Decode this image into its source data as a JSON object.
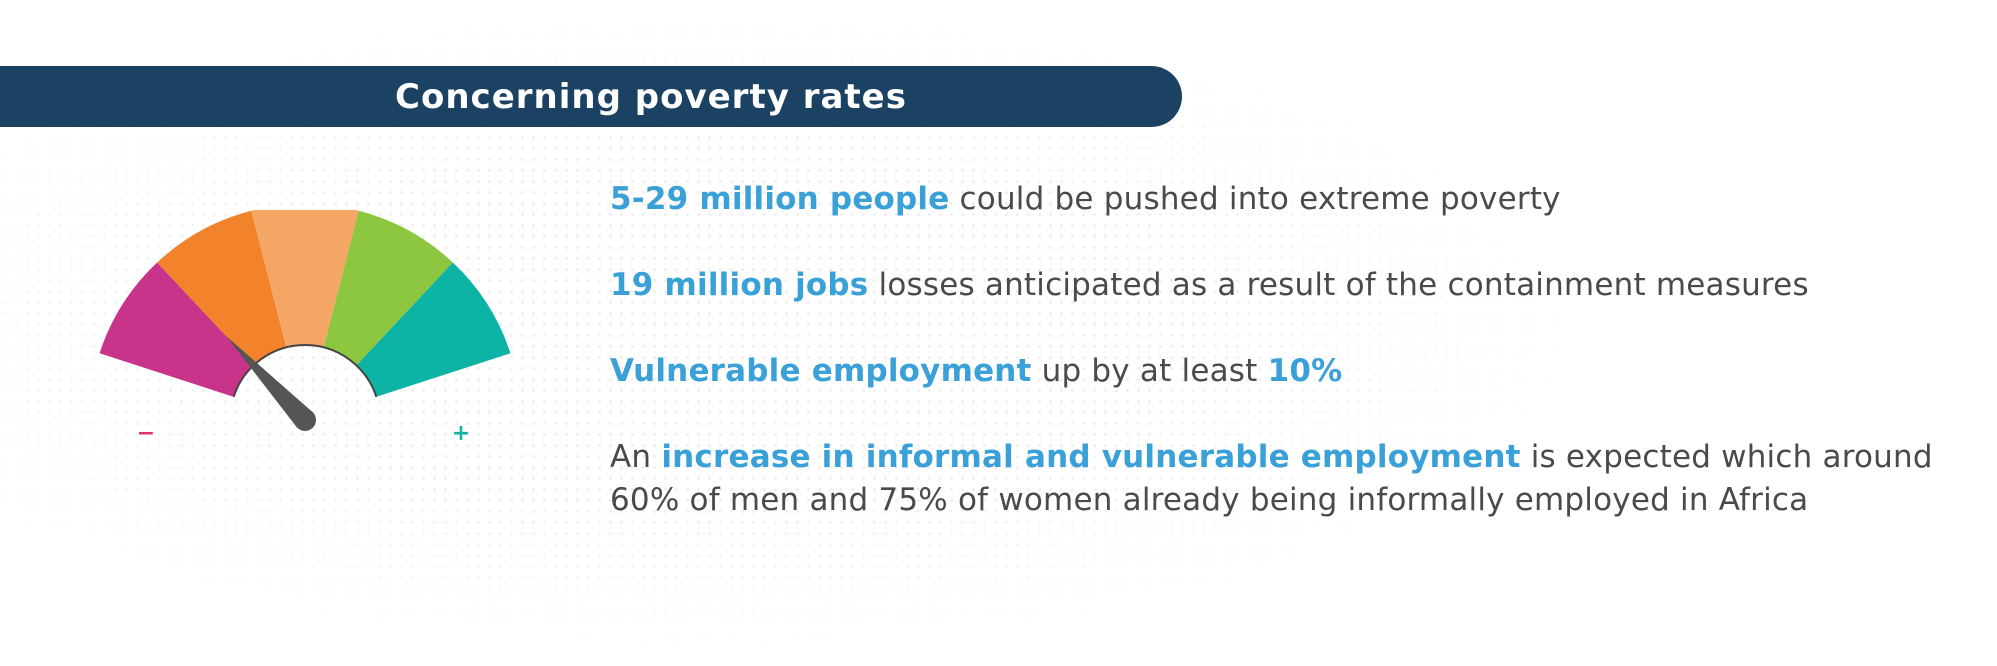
{
  "banner": {
    "title": "Concerning poverty rates",
    "color": "#1b4262"
  },
  "gauge": {
    "segment_colors": [
      "#c8348a",
      "#f2832a",
      "#f4a765",
      "#8dc63f",
      "#0db3a4"
    ],
    "minus_label": "−",
    "plus_label": "+",
    "minus_color": "#e0336a",
    "plus_color": "#0db3a4",
    "needle_level": 0.2
  },
  "bullets": [
    {
      "highlight": "5-29 million people",
      "text": " could be pushed into extreme poverty"
    },
    {
      "highlight": "19 million jobs",
      "text": " losses anticipated as a result of the containment measures"
    },
    {
      "highlight": "Vulnerable employment",
      "text": " up by at least ",
      "highlight2": "10%"
    },
    {
      "prefix": "An ",
      "highlight": "increase in informal and vulnerable employment",
      "text": " is expected which around 60% of men and 75% of women already being informally employed in Africa"
    }
  ],
  "highlight_color": "#3aa0d8"
}
